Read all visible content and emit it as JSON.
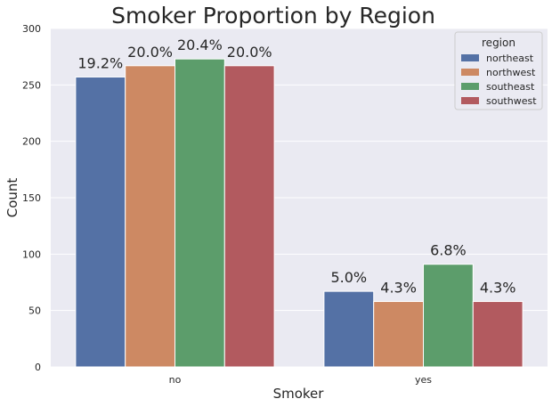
{
  "chart_data": {
    "type": "bar",
    "title": "Smoker Proportion by Region",
    "xlabel": "Smoker",
    "ylabel": "Count",
    "categories": [
      "no",
      "yes"
    ],
    "ylim": [
      0,
      300
    ],
    "yticks": [
      0,
      50,
      100,
      150,
      200,
      250,
      300
    ],
    "grid": true,
    "legend": {
      "title": "region",
      "placement": "top-right"
    },
    "series": [
      {
        "name": "northeast",
        "color": "#5471a5",
        "values": [
          257,
          67
        ],
        "labels": [
          "19.2%",
          "5.0%"
        ]
      },
      {
        "name": "northwest",
        "color": "#cd8963",
        "values": [
          267,
          58
        ],
        "labels": [
          "20.0%",
          "4.3%"
        ]
      },
      {
        "name": "southeast",
        "color": "#5c9d6b",
        "values": [
          273,
          91
        ],
        "labels": [
          "20.4%",
          "6.8%"
        ]
      },
      {
        "name": "southwest",
        "color": "#b25a5f",
        "values": [
          267,
          58
        ],
        "labels": [
          "20.0%",
          "4.3%"
        ]
      }
    ],
    "colors": {
      "plot_background": "#eaeaf2",
      "grid": "#ffffff",
      "text": "#262626"
    }
  }
}
